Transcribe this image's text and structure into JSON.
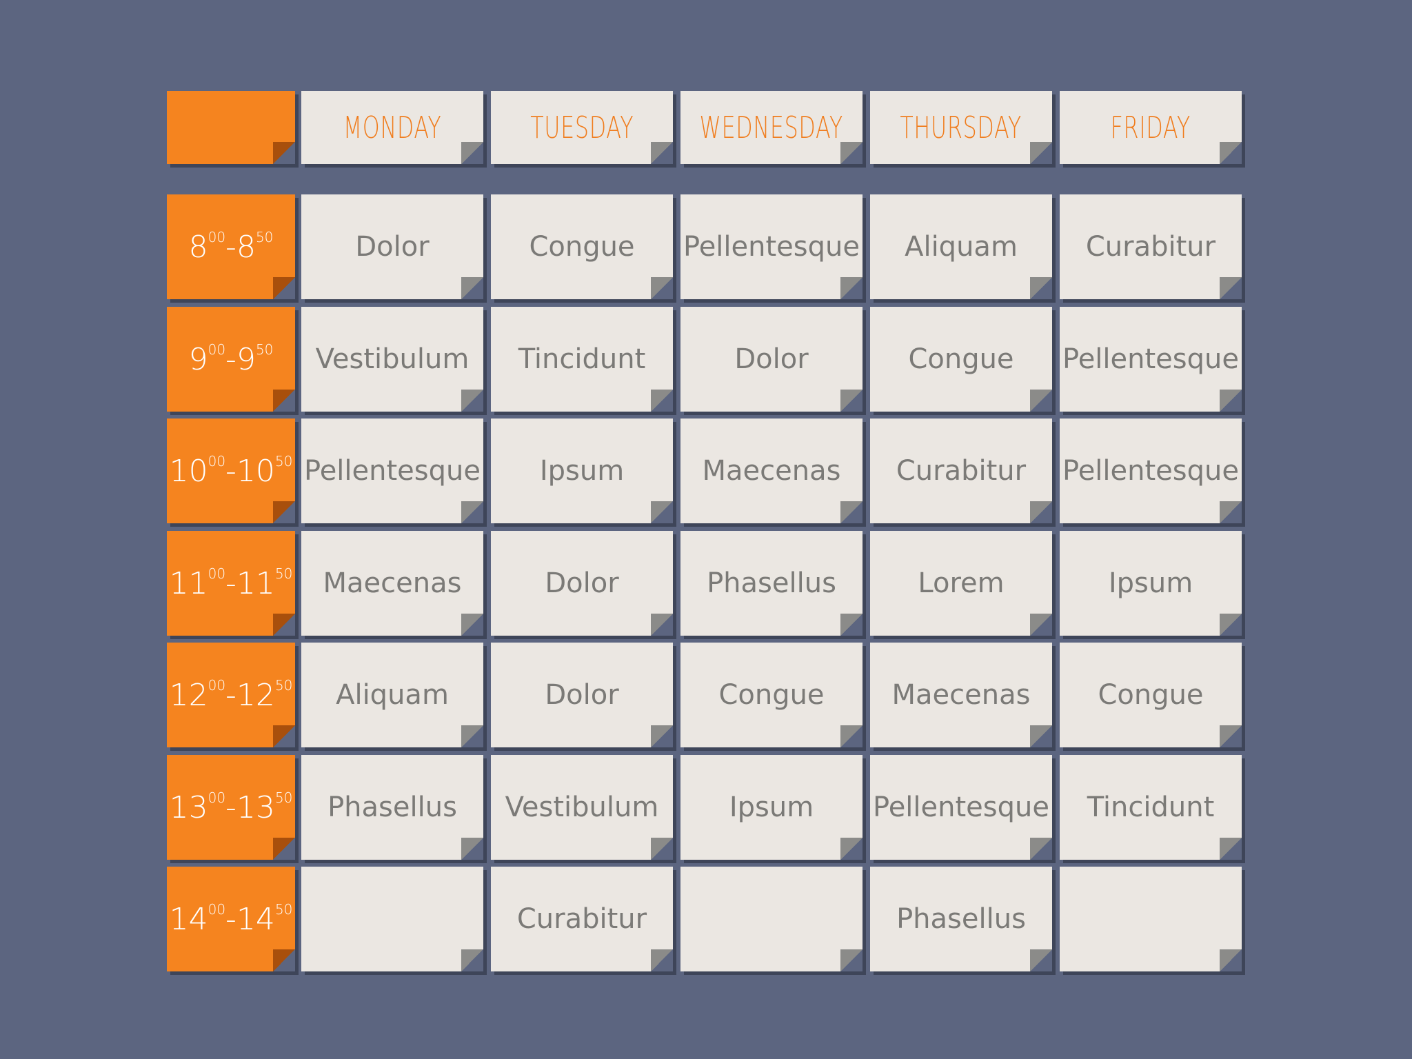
{
  "header": {
    "days": [
      "MONDAY",
      "TUESDAY",
      "WEDNESDAY",
      "THURSDAY",
      "FRIDAY"
    ]
  },
  "table": {
    "rows": [
      {
        "time": [
          "8",
          "00",
          "-",
          "8",
          "50"
        ],
        "cells": [
          "Dolor",
          "Congue",
          "Pellentesque",
          "Aliquam",
          "Curabitur"
        ]
      },
      {
        "time": [
          "9",
          "00",
          "-",
          "9",
          "50"
        ],
        "cells": [
          "Vestibulum",
          "Tincidunt",
          "Dolor",
          "Congue",
          "Pellentesque"
        ]
      },
      {
        "time": [
          "10",
          "00",
          "-",
          "10",
          "50"
        ],
        "cells": [
          "Pellentesque",
          "Ipsum",
          "Maecenas",
          "Curabitur",
          "Pellentesque"
        ]
      },
      {
        "time": [
          "11",
          "00",
          "-",
          "11",
          "50"
        ],
        "cells": [
          "Maecenas",
          "Dolor",
          "Phasellus",
          "Lorem",
          "Ipsum"
        ]
      },
      {
        "time": [
          "12",
          "00",
          "-",
          "12",
          "50"
        ],
        "cells": [
          "Aliquam",
          "Dolor",
          "Congue",
          "Maecenas",
          "Congue"
        ]
      },
      {
        "time": [
          "13",
          "00",
          "-",
          "13",
          "50"
        ],
        "cells": [
          "Phasellus",
          "Vestibulum",
          "Ipsum",
          "Pellentesque",
          "Tincidunt"
        ]
      },
      {
        "time": [
          "14",
          "00",
          "-",
          "14",
          "50"
        ],
        "cells": [
          null,
          "Curabitur",
          null,
          "Phasellus",
          null
        ]
      }
    ]
  }
}
